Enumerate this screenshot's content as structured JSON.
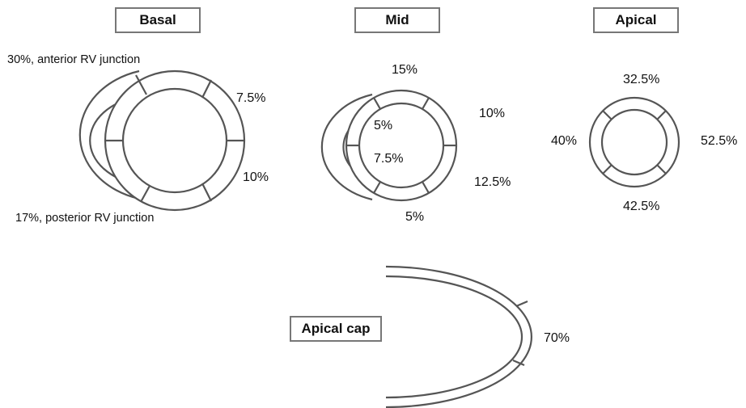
{
  "colors": {
    "stroke": "#555555",
    "box_border": "#777777",
    "text": "#111111"
  },
  "section_titles": {
    "basal": "Basal",
    "mid": "Mid",
    "apical": "Apical",
    "apical_cap": "Apical cap"
  },
  "basal": {
    "anterior_rv_junction": "30%, anterior RV junction",
    "posterior_rv_junction": "17%, posterior RV junction",
    "segment_upper_right": "7.5%",
    "segment_lower_right": "10%"
  },
  "mid": {
    "segment_top": "15%",
    "segment_upper_right": "10%",
    "segment_lower_right": "12.5%",
    "segment_bottom": "5%",
    "septal_upper": "5%",
    "septal_lower": "7.5%"
  },
  "apical": {
    "segment_top": "32.5%",
    "segment_left": "40%",
    "segment_right": "52.5%",
    "segment_bottom": "42.5%"
  },
  "apical_cap": {
    "segment_value": "70%"
  }
}
